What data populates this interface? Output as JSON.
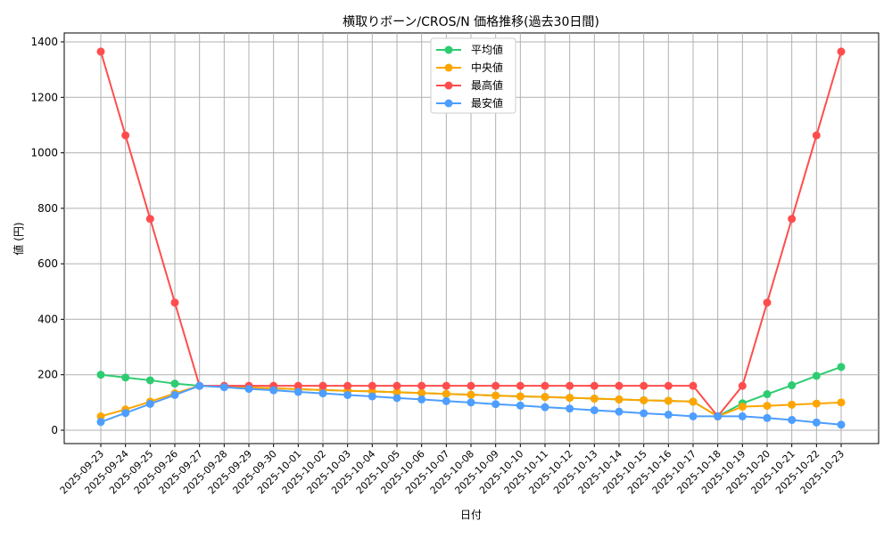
{
  "chart_data": {
    "type": "line",
    "title": "横取りボーン/CROS/N 価格推移(過去30日間)",
    "xlabel": "日付",
    "ylabel": "値 (円)",
    "ylim": [
      -45,
      1420
    ],
    "yticks": [
      0,
      200,
      400,
      600,
      800,
      1000,
      1200,
      1400
    ],
    "grid": true,
    "legend_placement": "top-center",
    "x": [
      "2025-09-23",
      "2025-09-24",
      "2025-09-25",
      "2025-09-26",
      "2025-09-27",
      "2025-09-28",
      "2025-09-29",
      "2025-09-30",
      "2025-10-01",
      "2025-10-02",
      "2025-10-03",
      "2025-10-04",
      "2025-10-05",
      "2025-10-06",
      "2025-10-07",
      "2025-10-08",
      "2025-10-09",
      "2025-10-10",
      "2025-10-11",
      "2025-10-12",
      "2025-10-13",
      "2025-10-14",
      "2025-10-15",
      "2025-10-16",
      "2025-10-17",
      "2025-10-18",
      "2025-10-19",
      "2025-10-20",
      "2025-10-21",
      "2025-10-22",
      "2025-10-23"
    ],
    "series": [
      {
        "name": "平均値",
        "color": "#2ecc71",
        "values": [
          200,
          190,
          180,
          168,
          160,
          157,
          154,
          151,
          148,
          145,
          142,
          140,
          137,
          134,
          131,
          128,
          125,
          122,
          120,
          117,
          114,
          111,
          108,
          106,
          103,
          50,
          97,
          130,
          162,
          196,
          228
        ]
      },
      {
        "name": "中央値",
        "color": "#ffa500",
        "values": [
          50,
          75,
          103,
          133,
          160,
          157,
          154,
          151,
          148,
          145,
          142,
          140,
          137,
          134,
          131,
          128,
          125,
          122,
          120,
          117,
          114,
          111,
          108,
          106,
          103,
          50,
          85,
          88,
          92,
          96,
          100
        ]
      },
      {
        "name": "最高値",
        "color": "#ff4d4d",
        "values": [
          1365,
          1063,
          762,
          460,
          160,
          160,
          160,
          160,
          160,
          160,
          160,
          160,
          160,
          160,
          160,
          160,
          160,
          160,
          160,
          160,
          160,
          160,
          160,
          160,
          160,
          50,
          160,
          460,
          762,
          1063,
          1365
        ]
      },
      {
        "name": "最安値",
        "color": "#4d9eff",
        "values": [
          30,
          62,
          95,
          127,
          160,
          155,
          149,
          144,
          138,
          133,
          127,
          122,
          116,
          111,
          105,
          100,
          94,
          89,
          83,
          78,
          72,
          67,
          61,
          56,
          50,
          50,
          50,
          44,
          37,
          28,
          20
        ]
      }
    ]
  }
}
